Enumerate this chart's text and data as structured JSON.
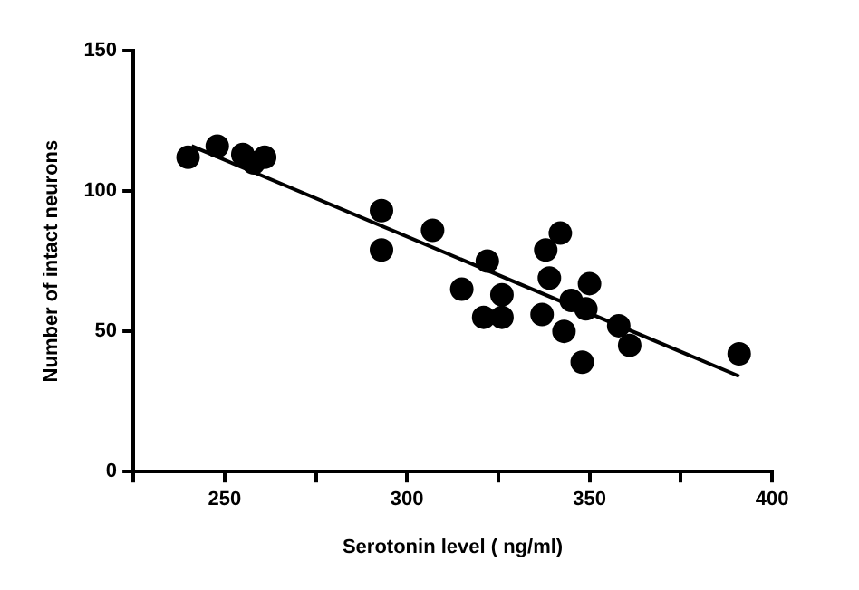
{
  "chart_data": {
    "type": "scatter",
    "xlabel": "Serotonin level ( ng/ml)",
    "ylabel": "Number of intact neurons",
    "xlim": [
      225,
      400
    ],
    "ylim": [
      0,
      150
    ],
    "xticks": [
      {
        "value": 225,
        "label": null
      },
      250,
      {
        "value": 275,
        "label": null
      },
      300,
      {
        "value": 325,
        "label": null
      },
      350,
      {
        "value": 375,
        "label": null
      },
      400
    ],
    "yticks": [
      0,
      50,
      100,
      150
    ],
    "grid": false,
    "legend": false,
    "marker": "circle",
    "series": [
      {
        "color": "#000000",
        "x": [
          240,
          248,
          255,
          258,
          261,
          293,
          293,
          307,
          315,
          321,
          322,
          326,
          326,
          337,
          338,
          339,
          342,
          343,
          345,
          348,
          349,
          350,
          358,
          361,
          391
        ],
        "values": [
          112,
          116,
          113,
          110,
          112,
          93,
          79,
          86,
          65,
          55,
          75,
          63,
          55,
          56,
          79,
          69,
          85,
          50,
          61,
          39,
          58,
          67,
          52,
          45,
          42
        ]
      },
      {
        "type": "line",
        "color": "#000000",
        "marker": "none",
        "line_style": "solid",
        "x": [
          241,
          391
        ],
        "values": [
          116,
          34
        ]
      }
    ]
  }
}
